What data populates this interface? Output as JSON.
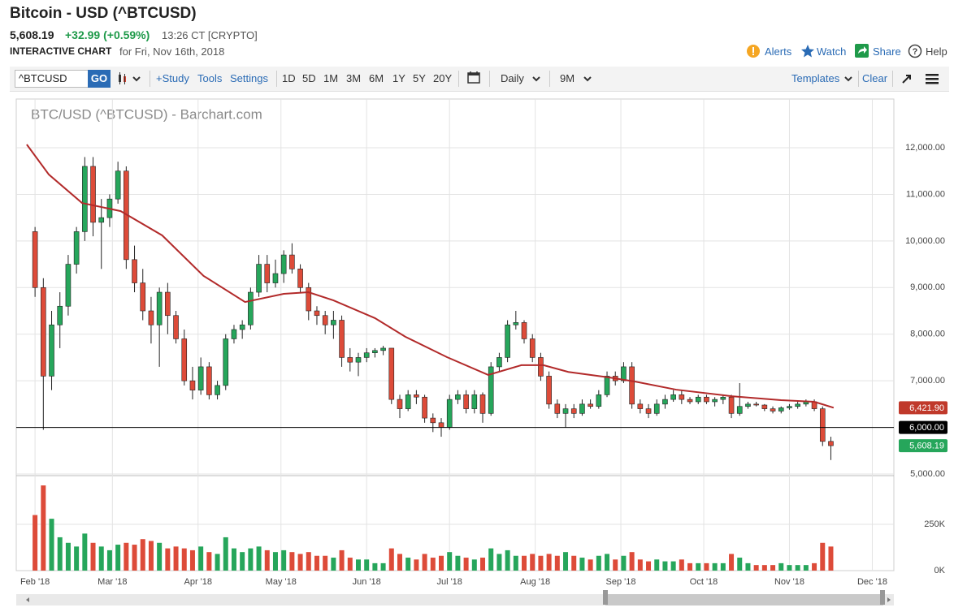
{
  "header": {
    "title": "Bitcoin - USD (^BTCUSD)",
    "price": "5,608.19",
    "change": "+32.99 (+0.59%)",
    "time": "13:26 CT [CRYPTO]",
    "chart_label": "INTERACTIVE CHART",
    "date_label": "for Fri, Nov 16th, 2018",
    "links": [
      "Alerts",
      "Watch",
      "Share",
      "Help"
    ]
  },
  "toolbar": {
    "symbol": "^BTCUSD",
    "go": "GO",
    "study": "+Study",
    "tools": "Tools",
    "settings": "Settings",
    "ranges": [
      "1D",
      "5D",
      "1M",
      "3M",
      "6M",
      "1Y",
      "5Y",
      "20Y"
    ],
    "interval": "Daily",
    "period": "9M",
    "templates": "Templates",
    "clear": "Clear"
  },
  "chart_data": {
    "type": "candlestick",
    "title": "BTC/USD (^BTCUSD) - Barchart.com",
    "up_color": "#26a65b",
    "down_color": "#dd4b39",
    "grid": true,
    "xlim": [
      -6.8,
      310.8
    ],
    "xticks": [
      {
        "value": 0,
        "label": "Feb '18"
      },
      {
        "value": 28,
        "label": "Mar '18"
      },
      {
        "value": 59,
        "label": "Apr '18"
      },
      {
        "value": 89,
        "label": "May '18"
      },
      {
        "value": 120,
        "label": "Jun '18"
      },
      {
        "value": 150,
        "label": "Jul '18"
      },
      {
        "value": 181,
        "label": "Aug '18"
      },
      {
        "value": 212,
        "label": "Sep '18"
      },
      {
        "value": 242,
        "label": "Oct '18"
      },
      {
        "value": 273,
        "label": "Nov '18"
      },
      {
        "value": 303,
        "label": "Dec '18"
      }
    ],
    "ylim": [
      5000,
      13045
    ],
    "yticks": [
      {
        "value": 5000,
        "label": "5,000.00"
      },
      {
        "value": 6000,
        "label": "6,000.00"
      },
      {
        "value": 7000,
        "label": "7,000.00"
      },
      {
        "value": 8000,
        "label": "8,000.00"
      },
      {
        "value": 9000,
        "label": "9,000.00"
      },
      {
        "value": 10000,
        "label": "10,000.00"
      },
      {
        "value": 11000,
        "label": "11,000.00"
      },
      {
        "value": 12000,
        "label": "12,000.00"
      }
    ],
    "y2lim": [
      0,
      504000
    ],
    "y2ticks": [
      {
        "value": 0,
        "label": "0K"
      },
      {
        "value": 250000,
        "label": "250K"
      }
    ],
    "x": [
      0,
      3,
      6,
      9,
      12,
      15,
      18,
      21,
      24,
      27,
      30,
      33,
      36,
      39,
      42,
      45,
      48,
      51,
      54,
      57,
      60,
      63,
      66,
      69,
      72,
      75,
      78,
      81,
      84,
      87,
      90,
      93,
      96,
      99,
      102,
      105,
      108,
      111,
      114,
      117,
      120,
      123,
      126,
      129,
      132,
      135,
      138,
      141,
      144,
      147,
      150,
      153,
      156,
      159,
      162,
      165,
      168,
      171,
      174,
      177,
      180,
      183,
      186,
      189,
      192,
      195,
      198,
      201,
      204,
      207,
      210,
      213,
      216,
      219,
      222,
      225,
      228,
      231,
      234,
      237,
      240,
      243,
      246,
      249,
      252,
      255,
      258,
      261,
      264,
      267,
      270,
      273,
      276,
      279,
      282,
      285,
      288
    ],
    "open": [
      10200,
      9000,
      7100,
      8200,
      8600,
      9500,
      10200,
      11600,
      10400,
      10500,
      10900,
      11500,
      9600,
      9100,
      8500,
      8200,
      8900,
      8400,
      7900,
      7000,
      6800,
      7300,
      6700,
      6900,
      7900,
      8100,
      8200,
      8900,
      9500,
      9100,
      9300,
      9700,
      9400,
      9000,
      8500,
      8400,
      8200,
      8300,
      7500,
      7400,
      7500,
      7600,
      7650,
      7700,
      6600,
      6400,
      6700,
      6650,
      6200,
      6100,
      6000,
      6600,
      6700,
      6400,
      6700,
      6300,
      7300,
      7500,
      8200,
      8250,
      7900,
      7500,
      7100,
      6500,
      6300,
      6400,
      6300,
      6500,
      6450,
      6700,
      7100,
      7000,
      7300,
      6500,
      6400,
      6300,
      6500,
      6600,
      6700,
      6600,
      6550,
      6650,
      6550,
      6600,
      6650,
      6300,
      6450,
      6500,
      6480,
      6400,
      6350,
      6420,
      6450,
      6500,
      6550,
      6400,
      5700
    ],
    "high": [
      10300,
      9200,
      8500,
      8900,
      9700,
      10300,
      11800,
      11800,
      10900,
      11000,
      11700,
      11600,
      9900,
      9400,
      8800,
      9000,
      9100,
      8500,
      8100,
      7300,
      7500,
      7400,
      7000,
      8000,
      8200,
      8300,
      9000,
      9700,
      9700,
      9600,
      9800,
      9950,
      9500,
      9100,
      8600,
      8500,
      8500,
      8400,
      7700,
      7600,
      7700,
      7700,
      7750,
      7700,
      6700,
      6800,
      6800,
      6700,
      6300,
      6200,
      6700,
      6800,
      6800,
      6800,
      6750,
      7400,
      7600,
      8300,
      8500,
      8300,
      8000,
      7600,
      7200,
      6600,
      6500,
      6500,
      6600,
      6600,
      6800,
      7200,
      7200,
      7400,
      7400,
      6600,
      6500,
      6600,
      6700,
      6800,
      6800,
      6650,
      6700,
      6700,
      6650,
      6700,
      6700,
      6950,
      6550,
      6550,
      6500,
      6450,
      6450,
      6500,
      6550,
      6600,
      6600,
      6450,
      5800
    ],
    "low": [
      8800,
      5950,
      6800,
      7700,
      8400,
      9300,
      10000,
      10100,
      9400,
      10300,
      10800,
      9400,
      8900,
      8300,
      7800,
      7300,
      8000,
      7800,
      6900,
      6600,
      6700,
      6600,
      6600,
      6800,
      7800,
      7900,
      8100,
      8800,
      8900,
      9000,
      9100,
      9300,
      8900,
      8300,
      8200,
      8000,
      7900,
      7300,
      7200,
      7100,
      7400,
      7500,
      7550,
      6500,
      6200,
      6350,
      6500,
      6100,
      5900,
      5800,
      5950,
      6500,
      6300,
      6300,
      6100,
      6250,
      7200,
      7400,
      8100,
      7800,
      7400,
      7000,
      6400,
      6200,
      6000,
      6200,
      6250,
      6400,
      6400,
      6650,
      6900,
      6950,
      6400,
      6300,
      6200,
      6250,
      6400,
      6550,
      6500,
      6500,
      6500,
      6500,
      6450,
      6500,
      6200,
      6250,
      6400,
      6450,
      6350,
      6300,
      6300,
      6380,
      6400,
      6450,
      6350,
      5600,
      5300
    ],
    "close": [
      9000,
      7100,
      8200,
      8600,
      9500,
      10200,
      11600,
      10400,
      10500,
      10900,
      11500,
      9600,
      9100,
      8500,
      8200,
      8900,
      8400,
      7900,
      7000,
      6800,
      7300,
      6700,
      6900,
      7900,
      8100,
      8200,
      8900,
      9500,
      9100,
      9300,
      9700,
      9400,
      9000,
      8500,
      8400,
      8200,
      8300,
      7500,
      7400,
      7500,
      7600,
      7650,
      7700,
      6600,
      6400,
      6700,
      6650,
      6200,
      6100,
      6000,
      6600,
      6700,
      6400,
      6700,
      6300,
      7300,
      7500,
      8200,
      8250,
      7900,
      7500,
      7100,
      6500,
      6300,
      6400,
      6300,
      6500,
      6450,
      6700,
      7100,
      7000,
      7300,
      6500,
      6400,
      6300,
      6500,
      6600,
      6700,
      6600,
      6550,
      6650,
      6550,
      6600,
      6650,
      6300,
      6450,
      6500,
      6480,
      6400,
      6350,
      6420,
      6450,
      6500,
      6550,
      6400,
      5700,
      5608.19
    ],
    "volume": [
      300000,
      460000,
      280000,
      180000,
      150000,
      130000,
      200000,
      150000,
      130000,
      110000,
      140000,
      150000,
      140000,
      170000,
      160000,
      150000,
      120000,
      130000,
      120000,
      110000,
      130000,
      100000,
      90000,
      180000,
      120000,
      100000,
      120000,
      130000,
      110000,
      100000,
      110000,
      100000,
      90000,
      100000,
      80000,
      80000,
      70000,
      110000,
      70000,
      60000,
      60000,
      40000,
      40000,
      120000,
      90000,
      70000,
      60000,
      90000,
      70000,
      80000,
      100000,
      80000,
      70000,
      60000,
      70000,
      120000,
      90000,
      110000,
      80000,
      80000,
      90000,
      80000,
      90000,
      80000,
      100000,
      80000,
      70000,
      60000,
      80000,
      90000,
      60000,
      80000,
      100000,
      60000,
      50000,
      60000,
      50000,
      50000,
      60000,
      40000,
      40000,
      40000,
      40000,
      40000,
      90000,
      70000,
      40000,
      30000,
      30000,
      30000,
      40000,
      30000,
      30000,
      30000,
      40000,
      150000,
      130000
    ],
    "moving_average": {
      "color": "#b22a2a",
      "x": [
        -3,
        5,
        17,
        31,
        46,
        61,
        76,
        90,
        99,
        108,
        123,
        134,
        149,
        164,
        176,
        184,
        193,
        208,
        217,
        232,
        252,
        270,
        282,
        289
      ],
      "values": [
        12070,
        11425,
        10815,
        10640,
        10120,
        9250,
        8690,
        8865,
        8900,
        8725,
        8345,
        7945,
        7510,
        7125,
        7335,
        7335,
        7190,
        7070,
        6985,
        6810,
        6670,
        6585,
        6550,
        6421.9
      ]
    },
    "price_tags": [
      {
        "value": 6421.9,
        "label": "6,421.90",
        "color": "#c0392b"
      },
      {
        "value": 6000,
        "label": "6,000.00",
        "color": "#000000",
        "line": true
      },
      {
        "value": 5608.19,
        "label": "5,608.19",
        "color": "#26a65b"
      }
    ]
  }
}
